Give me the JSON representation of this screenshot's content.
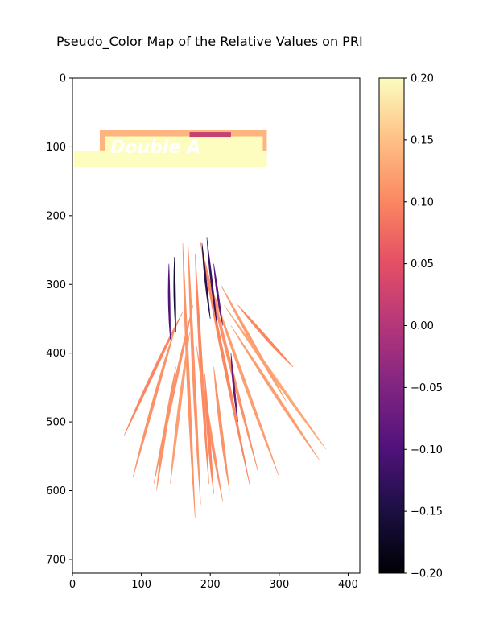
{
  "chart_data": {
    "type": "heatmap",
    "title": "Pseudo_Color Map of the Relative Values on PRI",
    "xlabel": "",
    "ylabel": "",
    "xlim": [
      0,
      417
    ],
    "ylim": [
      720,
      0
    ],
    "x_ticks": [
      0,
      100,
      200,
      300,
      400
    ],
    "y_ticks": [
      0,
      100,
      200,
      300,
      400,
      500,
      600,
      700
    ],
    "colormap": "magma",
    "colorbar": {
      "range": [
        -0.2,
        0.2
      ],
      "ticks": [
        0.2,
        0.15,
        0.1,
        0.05,
        0.0,
        -0.05,
        -0.1,
        -0.15,
        -0.2
      ],
      "tick_labels": [
        "0.20",
        "0.15",
        "0.10",
        "0.05",
        "0.00",
        "−0.05",
        "−0.10",
        "−0.15",
        "−0.20"
      ]
    },
    "image_content": {
      "label_strip": {
        "text": "Double A",
        "x_range": [
          0,
          282
        ],
        "y_range": [
          75,
          130
        ],
        "value": 0.2
      },
      "leaves": [
        {
          "x0": 160,
          "y0": 240,
          "x1": 178,
          "y1": 640,
          "value": 0.11
        },
        {
          "x0": 168,
          "y0": 245,
          "x1": 186,
          "y1": 620,
          "value": 0.11
        },
        {
          "x0": 185,
          "y0": 235,
          "x1": 258,
          "y1": 595,
          "value": 0.1
        },
        {
          "x0": 188,
          "y0": 250,
          "x1": 270,
          "y1": 575,
          "value": 0.11
        },
        {
          "x0": 178,
          "y0": 255,
          "x1": 198,
          "y1": 590,
          "value": 0.1
        },
        {
          "x0": 175,
          "y0": 330,
          "x1": 118,
          "y1": 590,
          "value": 0.11
        },
        {
          "x0": 160,
          "y0": 340,
          "x1": 75,
          "y1": 520,
          "value": 0.1
        },
        {
          "x0": 150,
          "y0": 360,
          "x1": 88,
          "y1": 580,
          "value": 0.11
        },
        {
          "x0": 170,
          "y0": 370,
          "x1": 142,
          "y1": 590,
          "value": 0.12
        },
        {
          "x0": 180,
          "y0": 390,
          "x1": 218,
          "y1": 615,
          "value": 0.11
        },
        {
          "x0": 200,
          "y0": 300,
          "x1": 300,
          "y1": 580,
          "value": 0.12
        },
        {
          "x0": 220,
          "y0": 330,
          "x1": 368,
          "y1": 540,
          "value": 0.13
        },
        {
          "x0": 230,
          "y0": 360,
          "x1": 358,
          "y1": 555,
          "value": 0.12
        },
        {
          "x0": 215,
          "y0": 300,
          "x1": 310,
          "y1": 470,
          "value": 0.12
        },
        {
          "x0": 240,
          "y0": 330,
          "x1": 320,
          "y1": 420,
          "value": 0.1
        },
        {
          "x0": 205,
          "y0": 420,
          "x1": 228,
          "y1": 600,
          "value": 0.11
        },
        {
          "x0": 150,
          "y0": 420,
          "x1": 122,
          "y1": 600,
          "value": 0.11
        },
        {
          "x0": 192,
          "y0": 430,
          "x1": 205,
          "y1": 605,
          "value": 0.1
        },
        {
          "x0": 195,
          "y0": 232,
          "x1": 210,
          "y1": 360,
          "value": -0.12
        },
        {
          "x0": 188,
          "y0": 240,
          "x1": 200,
          "y1": 350,
          "value": -0.14
        },
        {
          "x0": 205,
          "y0": 270,
          "x1": 218,
          "y1": 360,
          "value": -0.09
        },
        {
          "x0": 148,
          "y0": 260,
          "x1": 150,
          "y1": 370,
          "value": -0.16
        },
        {
          "x0": 140,
          "y0": 270,
          "x1": 142,
          "y1": 380,
          "value": -0.1
        },
        {
          "x0": 230,
          "y0": 400,
          "x1": 240,
          "y1": 500,
          "value": -0.08
        }
      ]
    }
  }
}
